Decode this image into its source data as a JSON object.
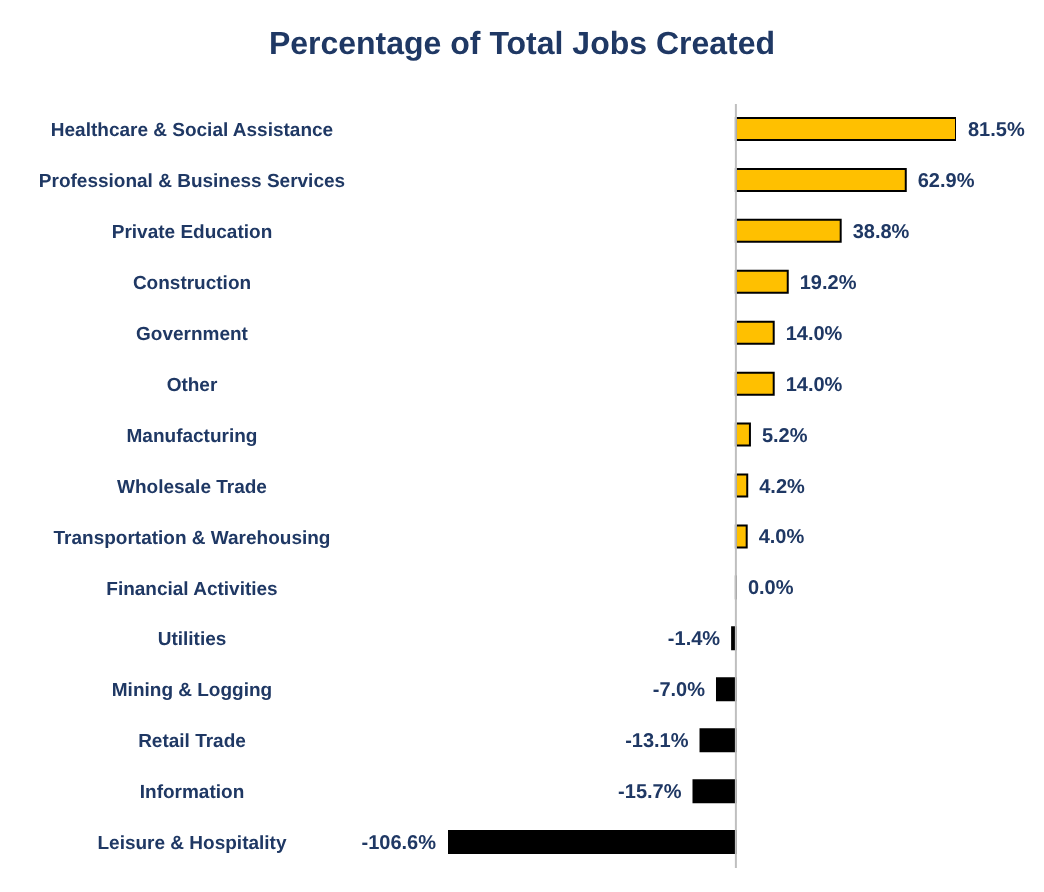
{
  "chart_data": {
    "type": "bar",
    "orientation": "horizontal",
    "title": "Percentage of Total Jobs Created",
    "categories": [
      "Healthcare & Social Assistance",
      "Professional & Business Services",
      "Private Education",
      "Construction",
      "Government",
      "Other",
      "Manufacturing",
      "Wholesale Trade",
      "Transportation & Warehousing",
      "Financial Activities",
      "Utilities",
      "Mining & Logging",
      "Retail Trade",
      "Information",
      "Leisure & Hospitality"
    ],
    "values": [
      81.5,
      62.9,
      38.8,
      19.2,
      14.0,
      14.0,
      5.2,
      4.2,
      4.0,
      0.0,
      -1.4,
      -7.0,
      -13.1,
      -15.7,
      -106.6
    ],
    "colors": [
      "#ffc000",
      "#ffc000",
      "#ffc000",
      "#ffc000",
      "#ffc000",
      "#ffc000",
      "#ffc000",
      "#ffc000",
      "#ffc000",
      "#ffc000",
      "#000000",
      "#000000",
      "#000000",
      "#000000",
      "#000000"
    ],
    "value_labels": [
      "81.5%",
      "62.9%",
      "38.8%",
      "19.2%",
      "14.0%",
      "14.0%",
      "5.2%",
      "4.2%",
      "4.0%",
      "0.0%",
      "-1.4%",
      "-7.0%",
      "-13.1%",
      "-15.7%",
      "-106.6%"
    ]
  }
}
